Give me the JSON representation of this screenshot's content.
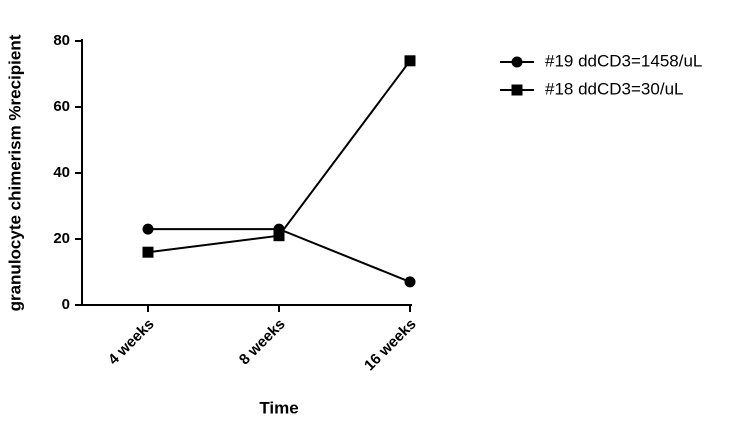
{
  "chart_data": {
    "type": "line",
    "x_label": "Time",
    "y_label": "granulocyte chimerism %recipient",
    "categories": [
      "4 weeks",
      "8 weeks",
      "16 weeks"
    ],
    "series": [
      {
        "name": "#19 ddCD3=1458/uL",
        "color": "#000000",
        "marker": "circle",
        "values": [
          23,
          23,
          7
        ]
      },
      {
        "name": "#18 ddCD3=30/uL",
        "color": "#000000",
        "marker": "square",
        "values": [
          16,
          21,
          74
        ]
      }
    ],
    "ylim": [
      0,
      80
    ],
    "yticks": [
      0,
      20,
      40,
      60,
      80
    ],
    "grid": false,
    "legend": "right"
  }
}
